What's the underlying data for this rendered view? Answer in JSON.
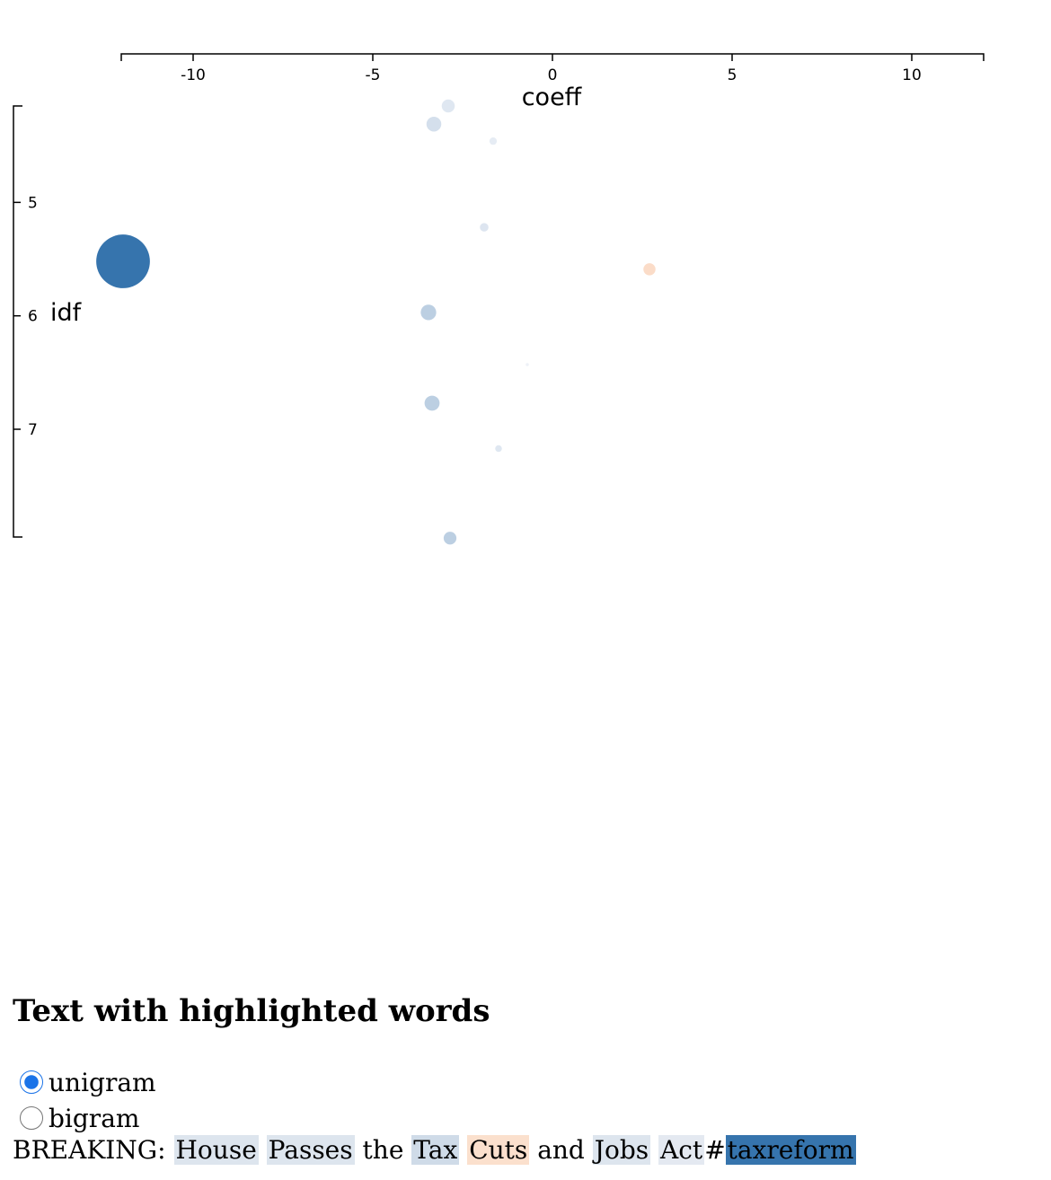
{
  "chart_data": {
    "type": "scatter",
    "xlabel": "coeff",
    "ylabel": "idf",
    "xlim": [
      -12,
      12
    ],
    "ylim": [
      4.15,
      7.95
    ],
    "x_ticks": [
      -10,
      -5,
      0,
      5,
      10
    ],
    "x_tick_labels": [
      "-10",
      "-5",
      "0",
      "5",
      "10"
    ],
    "y_ticks": [
      5,
      6,
      7
    ],
    "y_tick_labels": [
      "5",
      "6",
      "7"
    ],
    "points": [
      {
        "x": -2.9,
        "y": 4.15,
        "color": "#dfe7f1"
      },
      {
        "x": -3.3,
        "y": 4.31,
        "color": "#d4dfec"
      },
      {
        "x": -1.65,
        "y": 4.46,
        "color": "#e6ecf4"
      },
      {
        "x": -1.9,
        "y": 5.22,
        "color": "#dde5f0"
      },
      {
        "x": -11.95,
        "y": 5.52,
        "color": "#3674ad"
      },
      {
        "x": 2.7,
        "y": 5.59,
        "color": "#fbdcc8"
      },
      {
        "x": -3.45,
        "y": 5.97,
        "color": "#bccfe2"
      },
      {
        "x": -0.7,
        "y": 6.43,
        "color": "#eef2f7"
      },
      {
        "x": -3.35,
        "y": 6.77,
        "color": "#bccfe2"
      },
      {
        "x": -1.5,
        "y": 7.17,
        "color": "#dfe7f1"
      },
      {
        "x": -2.85,
        "y": 7.96,
        "color": "#bccfe2"
      }
    ]
  },
  "section_title": "Text with highlighted words",
  "radio": {
    "unigram_label": "unigram",
    "bigram_label": "bigram",
    "selected": "unigram"
  },
  "tokens": [
    {
      "text": "BREAKING:",
      "highlight": null
    },
    {
      "text": "House",
      "highlight": "#dde5ee"
    },
    {
      "text": "Passes",
      "highlight": "#dde5ee"
    },
    {
      "text": "the",
      "highlight": null
    },
    {
      "text": "Tax",
      "highlight": "#cfdbe8"
    },
    {
      "text": "Cuts",
      "highlight": "#fbe0cd"
    },
    {
      "text": "and",
      "highlight": null
    },
    {
      "text": "Jobs",
      "highlight": "#dde5ee"
    },
    {
      "text": "Act",
      "highlight": "#e4e9f1"
    },
    {
      "text": "#",
      "highlight": null,
      "attach": true
    },
    {
      "text": "taxreform",
      "highlight": "#3674ad",
      "attach": true
    }
  ]
}
